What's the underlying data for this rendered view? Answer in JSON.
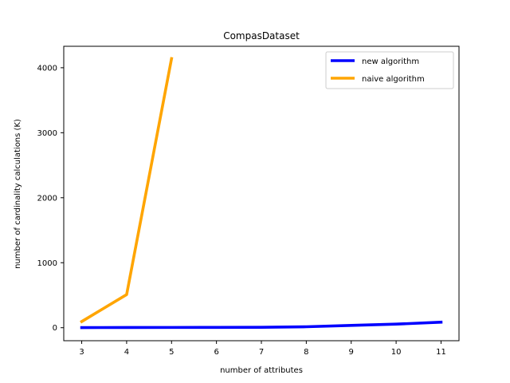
{
  "chart_data": {
    "type": "line",
    "title": "CompasDataset",
    "xlabel": "number of attributes",
    "ylabel": "number of cardinality calculations (K)",
    "xlim": [
      2.6,
      11.4
    ],
    "ylim": [
      -200,
      4330
    ],
    "xticks": [
      3,
      4,
      5,
      6,
      7,
      8,
      9,
      10,
      11
    ],
    "yticks": [
      0,
      1000,
      2000,
      3000,
      4000
    ],
    "grid": false,
    "legend_position": "upper-right",
    "series": [
      {
        "name": "new algorithm",
        "color": "#0000ff",
        "x": [
          3,
          4,
          5,
          6,
          7,
          8,
          9,
          10,
          11
        ],
        "y": [
          2,
          3,
          4,
          5,
          7,
          15,
          35,
          55,
          85
        ]
      },
      {
        "name": "naive algorithm",
        "color": "#ffa500",
        "x": [
          3,
          4,
          5
        ],
        "y": [
          95,
          510,
          4140
        ]
      }
    ]
  }
}
